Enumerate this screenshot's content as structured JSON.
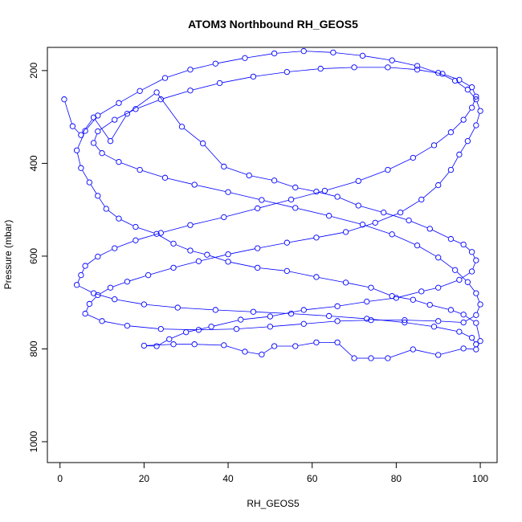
{
  "chart_data": {
    "type": "line",
    "title": "ATOM3 Northbound RH_GEOS5",
    "xlabel": "RH_GEOS5",
    "ylabel": "Pressure (mbar)",
    "xlim": [
      -3,
      104
    ],
    "ylim": [
      1045,
      150
    ],
    "y_reversed": true,
    "x_ticks": [
      0,
      20,
      40,
      60,
      80,
      100
    ],
    "y_ticks": [
      200,
      400,
      600,
      800,
      1000
    ],
    "grid": false,
    "legend": "none",
    "series": [
      {
        "color": "#0000ff",
        "marker": "open-circle",
        "points": [
          [
            1,
            262
          ],
          [
            3,
            320
          ],
          [
            5,
            339
          ],
          [
            8,
            301
          ],
          [
            12,
            352
          ],
          [
            16,
            293
          ],
          [
            23,
            247
          ],
          [
            29,
            321
          ],
          [
            34,
            357
          ],
          [
            39,
            407
          ],
          [
            45,
            426
          ],
          [
            51,
            437
          ],
          [
            56,
            452
          ],
          [
            61,
            461
          ],
          [
            66,
            472
          ],
          [
            71,
            491
          ],
          [
            77,
            506
          ],
          [
            83,
            523
          ],
          [
            88,
            541
          ],
          [
            93,
            563
          ],
          [
            96,
            575
          ],
          [
            98,
            591
          ],
          [
            99,
            609
          ],
          [
            98,
            633
          ],
          [
            95,
            651
          ],
          [
            90,
            668
          ],
          [
            86,
            676
          ],
          [
            80,
            690
          ],
          [
            73,
            698
          ],
          [
            66,
            708
          ],
          [
            58,
            716
          ],
          [
            50,
            730
          ],
          [
            43,
            737
          ],
          [
            36,
            752
          ],
          [
            30,
            764
          ],
          [
            26,
            779
          ],
          [
            23,
            794
          ],
          [
            20,
            793
          ],
          [
            27,
            790
          ],
          [
            32,
            790
          ],
          [
            39,
            792
          ],
          [
            44,
            806
          ],
          [
            48,
            812
          ],
          [
            51,
            794
          ],
          [
            56,
            794
          ],
          [
            61,
            786
          ],
          [
            66,
            786
          ],
          [
            70,
            820
          ],
          [
            74,
            820
          ],
          [
            78,
            820
          ],
          [
            84,
            801
          ],
          [
            90,
            813
          ],
          [
            96,
            799
          ],
          [
            99,
            801
          ],
          [
            100,
            783
          ],
          [
            99,
            744
          ],
          [
            96,
            726
          ],
          [
            93,
            716
          ],
          [
            88,
            705
          ],
          [
            84,
            694
          ],
          [
            79,
            686
          ],
          [
            74,
            668
          ],
          [
            68,
            657
          ],
          [
            61,
            645
          ],
          [
            54,
            632
          ],
          [
            47,
            625
          ],
          [
            40,
            612
          ],
          [
            35,
            597
          ],
          [
            31,
            588
          ],
          [
            27,
            573
          ],
          [
            23,
            552
          ],
          [
            18,
            537
          ],
          [
            14,
            519
          ],
          [
            11,
            498
          ],
          [
            9,
            470
          ],
          [
            7,
            441
          ],
          [
            5,
            410
          ],
          [
            4,
            372
          ],
          [
            6,
            330
          ],
          [
            9,
            297
          ],
          [
            14,
            270
          ],
          [
            19,
            244
          ],
          [
            25,
            216
          ],
          [
            31,
            198
          ],
          [
            37,
            185
          ],
          [
            44,
            173
          ],
          [
            51,
            163
          ],
          [
            58,
            158
          ],
          [
            65,
            161
          ],
          [
            72,
            168
          ],
          [
            79,
            178
          ],
          [
            85,
            190
          ],
          [
            90,
            205
          ],
          [
            94,
            222
          ],
          [
            97,
            241
          ],
          [
            99,
            262
          ],
          [
            100,
            287
          ],
          [
            99,
            318
          ],
          [
            97,
            352
          ],
          [
            95,
            381
          ],
          [
            93,
            414
          ],
          [
            90,
            447
          ],
          [
            86,
            478
          ],
          [
            81,
            506
          ],
          [
            75,
            528
          ],
          [
            68,
            548
          ],
          [
            61,
            560
          ],
          [
            54,
            571
          ],
          [
            47,
            583
          ],
          [
            40,
            596
          ],
          [
            33,
            611
          ],
          [
            27,
            625
          ],
          [
            21,
            641
          ],
          [
            16,
            655
          ],
          [
            12,
            668
          ],
          [
            9,
            684
          ],
          [
            7,
            703
          ],
          [
            6,
            724
          ],
          [
            10,
            740
          ],
          [
            16,
            750
          ],
          [
            24,
            757
          ],
          [
            33,
            759
          ],
          [
            42,
            757
          ],
          [
            50,
            752
          ],
          [
            58,
            746
          ],
          [
            66,
            740
          ],
          [
            74,
            738
          ],
          [
            82,
            738
          ],
          [
            90,
            740
          ],
          [
            96,
            743
          ],
          [
            99,
            727
          ],
          [
            100,
            704
          ],
          [
            99,
            680
          ],
          [
            97,
            656
          ],
          [
            94,
            630
          ],
          [
            90,
            603
          ],
          [
            85,
            577
          ],
          [
            79,
            553
          ],
          [
            72,
            532
          ],
          [
            64,
            513
          ],
          [
            56,
            496
          ],
          [
            48,
            479
          ],
          [
            40,
            462
          ],
          [
            32,
            446
          ],
          [
            25,
            431
          ],
          [
            19,
            414
          ],
          [
            14,
            397
          ],
          [
            10,
            378
          ],
          [
            8,
            356
          ],
          [
            9,
            331
          ],
          [
            13,
            306
          ],
          [
            18,
            283
          ],
          [
            24,
            262
          ],
          [
            31,
            243
          ],
          [
            38,
            227
          ],
          [
            46,
            213
          ],
          [
            54,
            203
          ],
          [
            62,
            196
          ],
          [
            70,
            193
          ],
          [
            78,
            193
          ],
          [
            85,
            198
          ],
          [
            91,
            207
          ],
          [
            95,
            220
          ],
          [
            98,
            236
          ],
          [
            99,
            256
          ],
          [
            98,
            280
          ],
          [
            96,
            306
          ],
          [
            93,
            333
          ],
          [
            89,
            361
          ],
          [
            84,
            388
          ],
          [
            78,
            414
          ],
          [
            71,
            438
          ],
          [
            63,
            459
          ],
          [
            55,
            478
          ],
          [
            47,
            497
          ],
          [
            39,
            516
          ],
          [
            31,
            533
          ],
          [
            24,
            550
          ],
          [
            18,
            566
          ],
          [
            13,
            583
          ],
          [
            9,
            601
          ],
          [
            6,
            621
          ],
          [
            5,
            641
          ],
          [
            4,
            662
          ],
          [
            8,
            680
          ],
          [
            13,
            693
          ],
          [
            20,
            704
          ],
          [
            28,
            711
          ],
          [
            37,
            716
          ],
          [
            46,
            720
          ],
          [
            55,
            724
          ],
          [
            64,
            729
          ],
          [
            73,
            735
          ],
          [
            82,
            743
          ],
          [
            89,
            752
          ],
          [
            95,
            763
          ],
          [
            98,
            776
          ],
          [
            99,
            790
          ]
        ]
      }
    ]
  }
}
